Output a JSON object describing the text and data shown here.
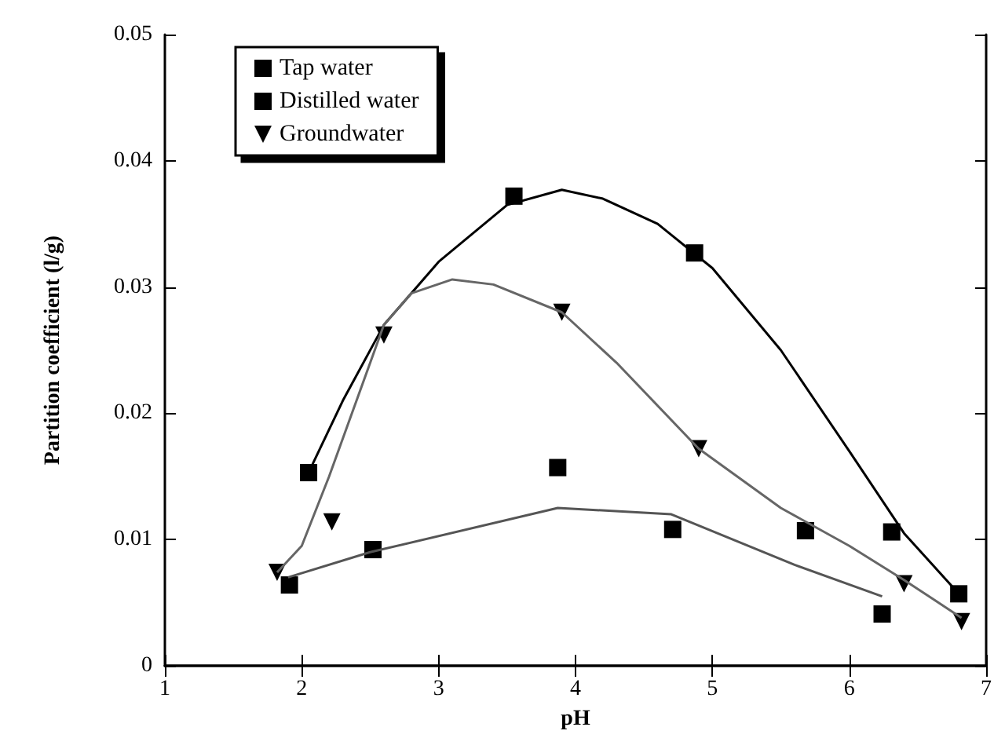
{
  "chart_data": {
    "type": "scatter",
    "xlabel": "pH",
    "ylabel": "Partition coefficient (l/g)",
    "xlim": [
      1,
      7
    ],
    "xticks": [
      1,
      2,
      3,
      4,
      5,
      6,
      7
    ],
    "ylim": [
      0,
      0.05
    ],
    "yticks": [
      0,
      0.01,
      0.02,
      0.03,
      0.04,
      0.05
    ],
    "grid": false,
    "legend": "top left",
    "series": [
      {
        "name": "Tap water",
        "color": "#000000",
        "marker": "square",
        "x": [
          1.91,
          2.52,
          3.87,
          4.71,
          5.68,
          6.24
        ],
        "values": [
          0.0064,
          0.0092,
          0.0157,
          0.0108,
          0.0107,
          0.0041
        ]
      },
      {
        "name": "Distilled water",
        "color": "#000000",
        "marker": "square",
        "x": [
          2.05,
          3.55,
          4.87,
          6.31,
          6.8
        ],
        "values": [
          0.0153,
          0.0372,
          0.0327,
          0.0106,
          0.0057
        ]
      },
      {
        "name": "Groundwater",
        "color": "#000000",
        "marker": "triangle",
        "x": [
          1.82,
          2.22,
          2.6,
          3.9,
          4.9,
          6.4,
          6.82
        ],
        "values": [
          0.0074,
          0.0114,
          0.0262,
          0.028,
          0.0172,
          0.0065,
          0.0035
        ]
      },
      {
        "type": "line",
        "color": "#555555",
        "marker": "none",
        "x": [
          1.9,
          2.5,
          3.87,
          4.7,
          5.6,
          6.24
        ],
        "values": [
          0.007,
          0.009,
          0.0125,
          0.012,
          0.008,
          0.0055
        ]
      },
      {
        "type": "line",
        "color": "#000000",
        "marker": "none",
        "x": [
          2.05,
          2.3,
          2.6,
          3.0,
          3.5,
          3.9,
          4.2,
          4.6,
          5.0,
          5.5,
          6.0,
          6.4,
          6.8
        ],
        "values": [
          0.0153,
          0.021,
          0.027,
          0.032,
          0.0365,
          0.0377,
          0.037,
          0.035,
          0.0315,
          0.025,
          0.017,
          0.0105,
          0.0057
        ]
      },
      {
        "type": "line",
        "color": "#666666",
        "marker": "none",
        "x": [
          1.82,
          2.0,
          2.2,
          2.4,
          2.6,
          2.8,
          3.1,
          3.4,
          3.9,
          4.3,
          4.9,
          5.5,
          6.0,
          6.4,
          6.82
        ],
        "values": [
          0.0074,
          0.0095,
          0.015,
          0.021,
          0.027,
          0.0295,
          0.0306,
          0.0302,
          0.028,
          0.024,
          0.0172,
          0.0125,
          0.0095,
          0.0068,
          0.0038
        ]
      }
    ]
  }
}
